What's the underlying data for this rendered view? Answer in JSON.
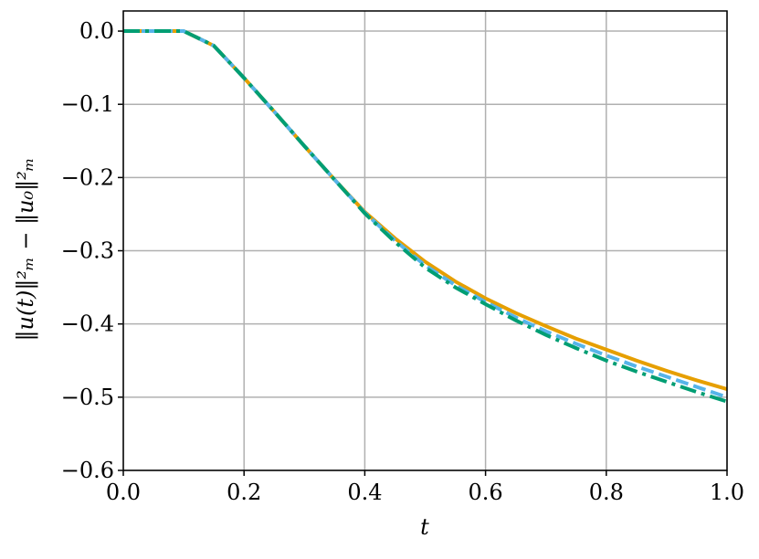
{
  "chart_data": {
    "type": "line",
    "xlabel": "t",
    "ylabel": "‖u(t)‖²ₘ − ‖u₀‖²ₘ",
    "x": [
      0,
      0.05,
      0.1,
      0.15,
      0.2,
      0.25,
      0.3,
      0.35,
      0.4,
      0.45,
      0.5,
      0.55,
      0.6,
      0.65,
      0.7,
      0.75,
      0.8,
      0.85,
      0.9,
      0.95,
      1.0
    ],
    "series": [
      {
        "color": "#e69f00",
        "style": "solid",
        "values": [
          0,
          0,
          0,
          -0.02,
          -0.064,
          -0.11,
          -0.157,
          -0.203,
          -0.247,
          -0.283,
          -0.315,
          -0.342,
          -0.365,
          -0.385,
          -0.403,
          -0.42,
          -0.435,
          -0.45,
          -0.464,
          -0.477,
          -0.489
        ]
      },
      {
        "color": "#56b4e9",
        "style": "dashed",
        "values": [
          0,
          0,
          0,
          -0.02,
          -0.064,
          -0.11,
          -0.157,
          -0.203,
          -0.248,
          -0.286,
          -0.32,
          -0.347,
          -0.37,
          -0.391,
          -0.41,
          -0.427,
          -0.443,
          -0.458,
          -0.472,
          -0.486,
          -0.5
        ]
      },
      {
        "color": "#009e73",
        "style": "dashdot",
        "values": [
          0,
          0,
          0,
          -0.02,
          -0.064,
          -0.11,
          -0.157,
          -0.203,
          -0.249,
          -0.288,
          -0.323,
          -0.35,
          -0.373,
          -0.395,
          -0.415,
          -0.433,
          -0.45,
          -0.465,
          -0.479,
          -0.493,
          -0.506
        ]
      }
    ],
    "xlim": [
      0,
      1
    ],
    "ylim": [
      -0.6,
      0.0275
    ],
    "xticks": [
      {
        "value": 0,
        "label": "0.0"
      },
      {
        "value": 0.2,
        "label": "0.2"
      },
      {
        "value": 0.4,
        "label": "0.4"
      },
      {
        "value": 0.6,
        "label": "0.6"
      },
      {
        "value": 0.8,
        "label": "0.8"
      },
      {
        "value": 1.0,
        "label": "1.0"
      }
    ],
    "yticks": [
      {
        "value": 0,
        "label": "0.0"
      },
      {
        "value": -0.1,
        "label": "−0.1"
      },
      {
        "value": -0.2,
        "label": "−0.2"
      },
      {
        "value": -0.3,
        "label": "−0.3"
      },
      {
        "value": -0.4,
        "label": "−0.4"
      },
      {
        "value": -0.5,
        "label": "−0.5"
      },
      {
        "value": -0.6,
        "label": "−0.6"
      }
    ],
    "grid": true
  }
}
